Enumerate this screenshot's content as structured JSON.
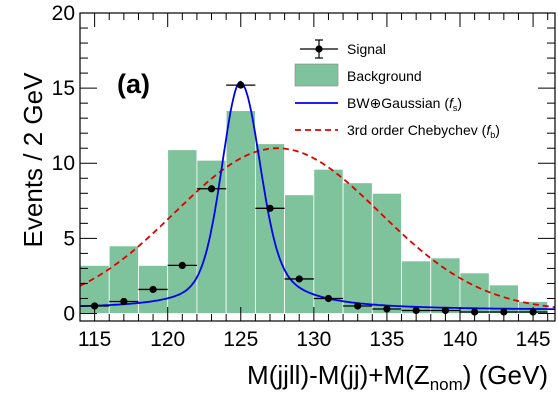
{
  "chart_data": {
    "type": "bar",
    "panel_label": "(a)",
    "xlabel_parts": {
      "main": "M(jjll)-M(jj)+M(Z",
      "sub": "nom",
      "tail": ") (GeV)"
    },
    "ylabel": "Events / 2 GeV",
    "xlim": [
      114,
      146.5
    ],
    "ylim": [
      -0.5,
      20
    ],
    "x_ticks": [
      115,
      120,
      125,
      130,
      135,
      140,
      145
    ],
    "y_ticks": [
      0,
      5,
      10,
      15,
      20
    ],
    "background_histogram": {
      "name": "Background",
      "color": "#7fc39c",
      "bin_edges": [
        114,
        116,
        118,
        120,
        122,
        124,
        126,
        128,
        130,
        132,
        134,
        136,
        138,
        140,
        142,
        144,
        146
      ],
      "values": [
        3.2,
        4.5,
        3.2,
        10.9,
        10.2,
        13.5,
        11.3,
        7.9,
        9.6,
        8.7,
        8.0,
        3.5,
        3.7,
        2.7,
        1.9,
        0.8
      ]
    },
    "signal_points": {
      "name": "Signal",
      "x": [
        115,
        117,
        119,
        121,
        123,
        125,
        127,
        129,
        131,
        133,
        135,
        137,
        139,
        141,
        143,
        145
      ],
      "y": [
        0.5,
        0.8,
        1.6,
        3.2,
        8.3,
        15.2,
        7.0,
        2.3,
        1.0,
        0.5,
        0.3,
        0.2,
        0.2,
        0.1,
        0.1,
        0.1
      ]
    },
    "legend": [
      {
        "type": "points",
        "label": "Signal"
      },
      {
        "type": "fill",
        "label": "Background"
      },
      {
        "type": "line",
        "label": "BW⊕Gaussian",
        "sym": "f",
        "sub": "s"
      },
      {
        "type": "dashed",
        "label": "3rd order Chebychev",
        "sym": "f",
        "sub": "b"
      }
    ],
    "colors": {
      "signal_fit": "#0000ee",
      "background_fit": "#e00000",
      "background_fill": "#7fc39c",
      "background_edge": "#ffffff",
      "points": "#000000"
    }
  }
}
